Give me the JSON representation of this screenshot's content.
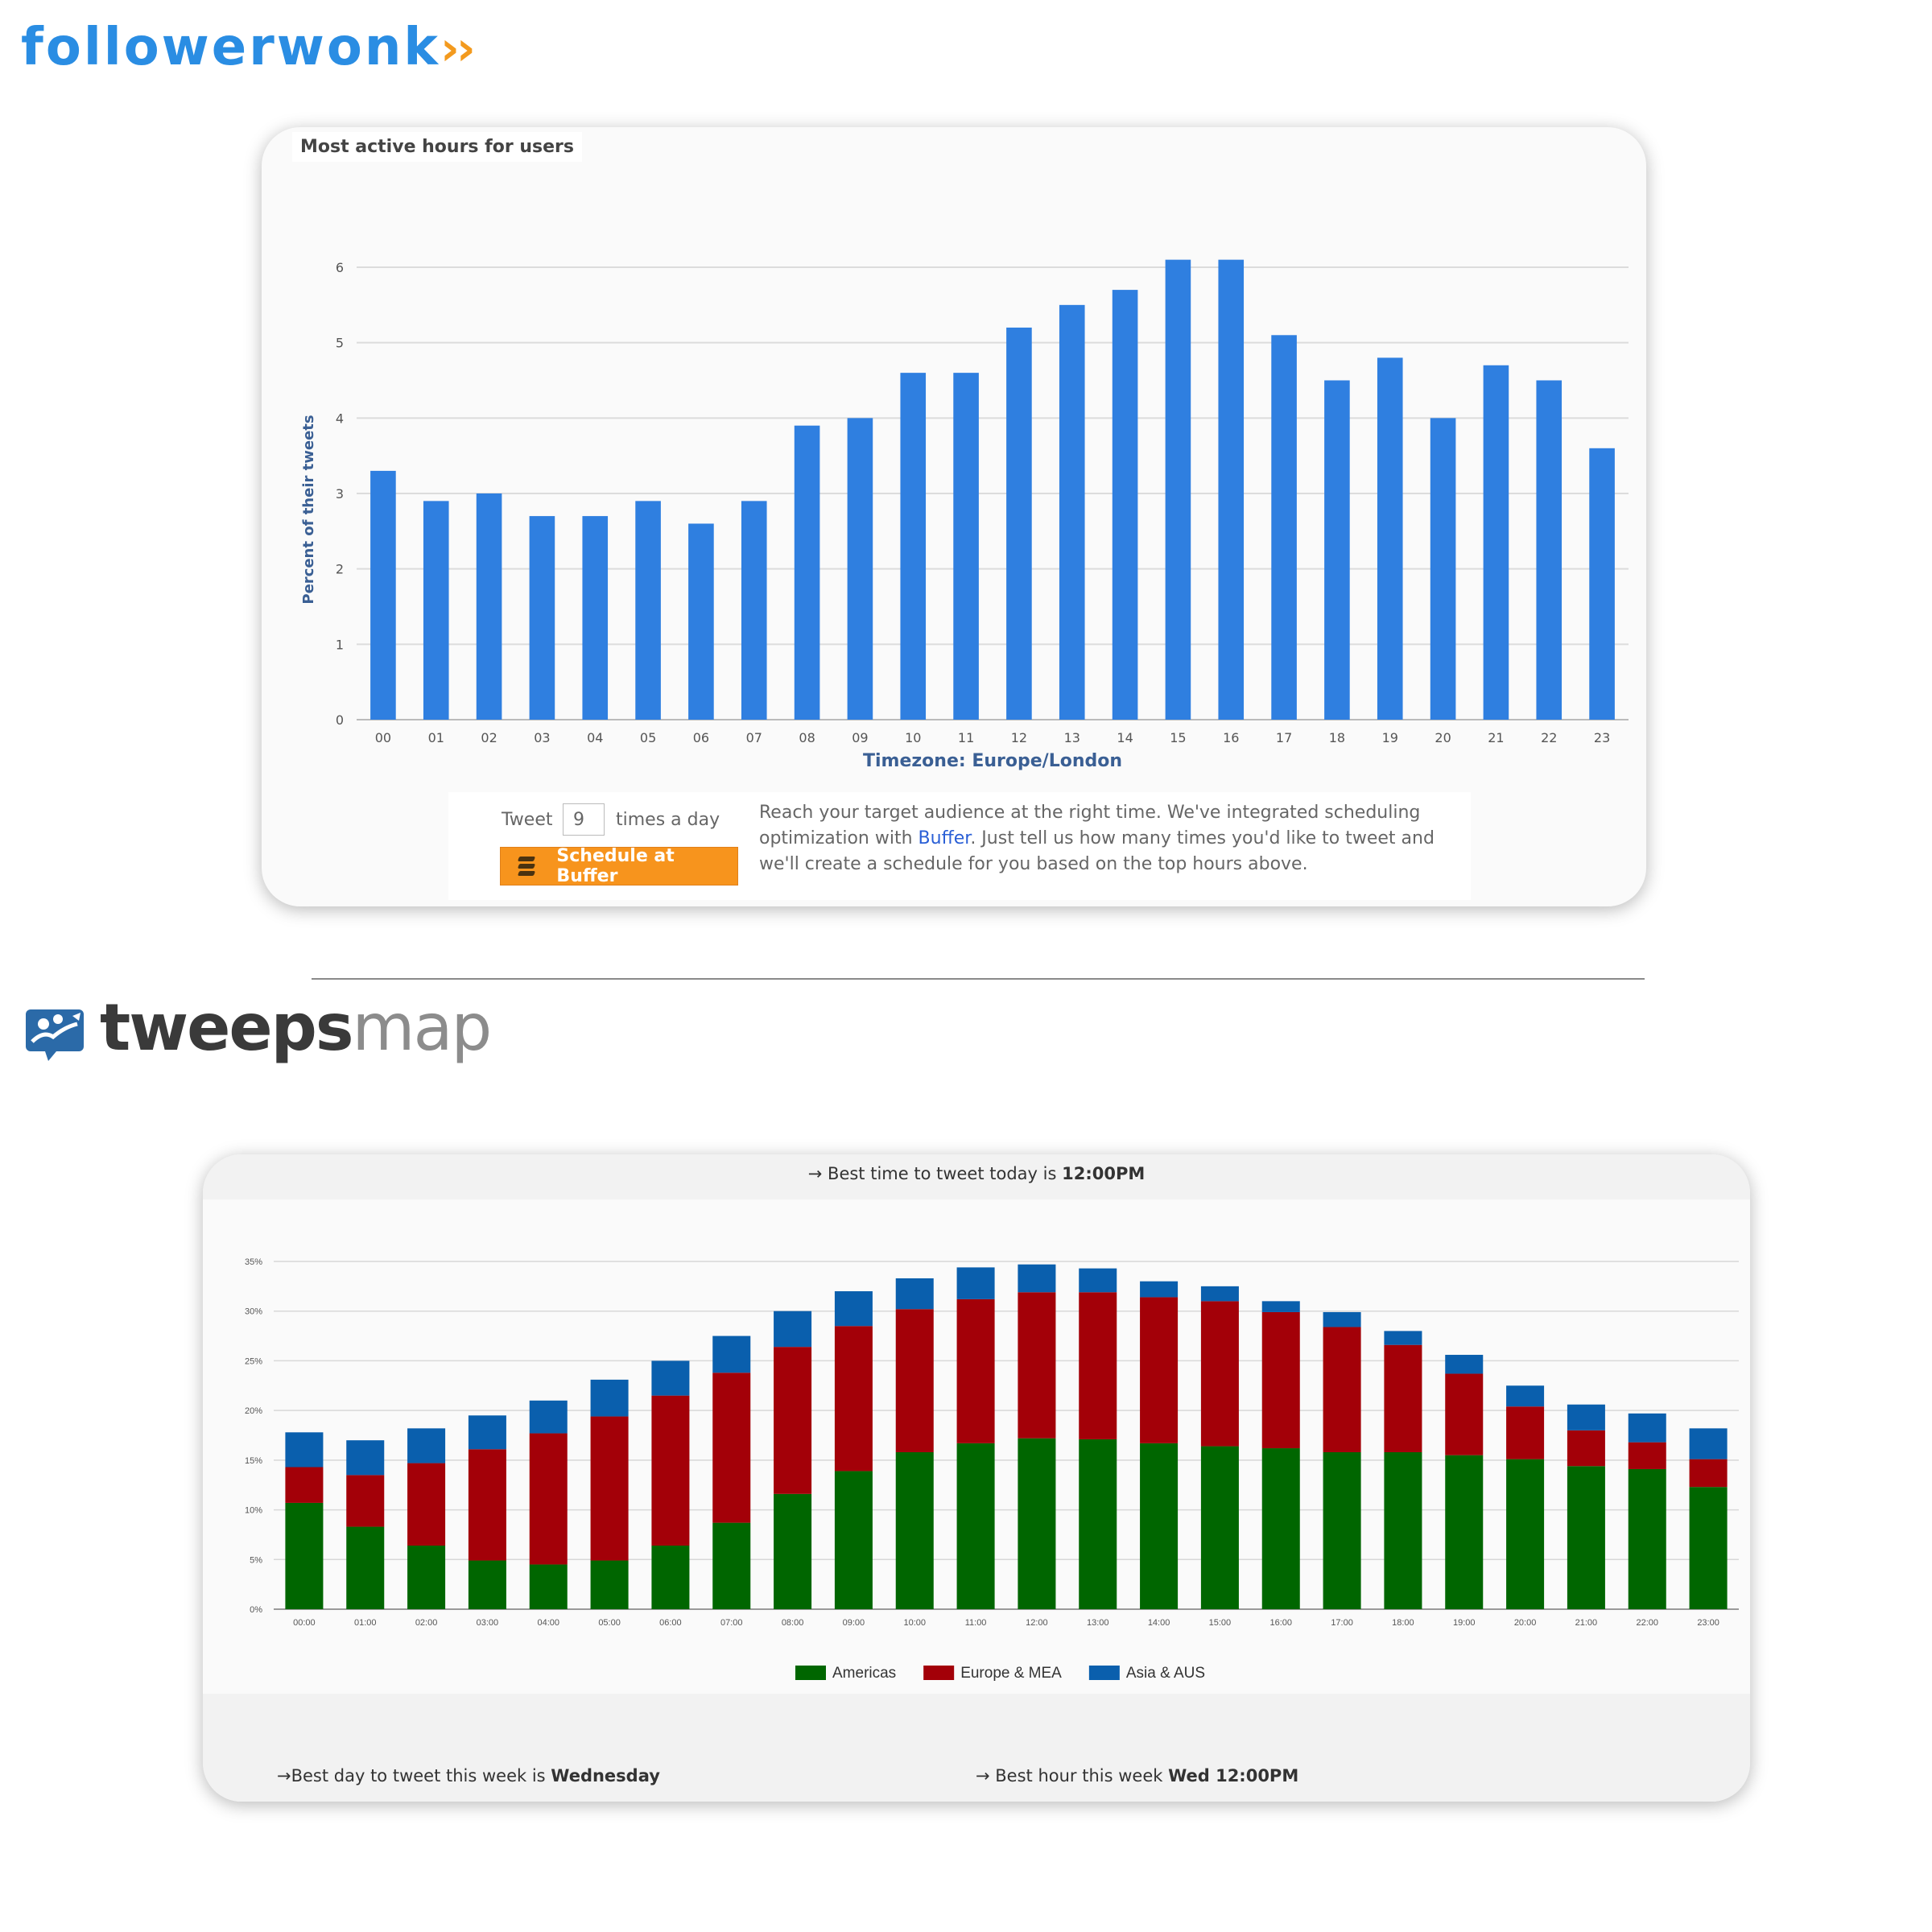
{
  "followerwonk": {
    "logo_text": "followerwonk",
    "logo_chevrons": "››",
    "card_title": "Most active hours for users",
    "buffer": {
      "tweet_label": "Tweet",
      "tweet_count_value": "9",
      "times_label": "times a day",
      "button_label": "Schedule at Buffer",
      "text_before": "Reach your target audience at the right time. We've integrated scheduling optimization with ",
      "link_text": "Buffer",
      "text_after": ". Just tell us how many times you'd like to tweet and we'll create a schedule for you based on the top hours above."
    }
  },
  "tweepsmap": {
    "logo_part1": "tweeps",
    "logo_part2": "map",
    "best_today_prefix": "→ Best time to tweet today is ",
    "best_today_value": "12:00PM",
    "best_day_prefix": "→Best day to tweet this week is ",
    "best_day_value": "Wednesday",
    "best_hour_prefix": "→ Best hour this week ",
    "best_hour_value": "Wed 12:00PM"
  },
  "colors": {
    "fw_blue": "#2a8de3",
    "fw_orange": "#f39a1e",
    "bar_blue": "#2f7fe0",
    "americas": "#006600",
    "europe": "#a30008",
    "asia": "#0a5fad"
  },
  "chart_data": [
    {
      "type": "bar",
      "title": "Most active hours for users",
      "xlabel": "Timezone: Europe/London",
      "ylabel": "Percent of their tweets",
      "ylim": [
        0,
        6
      ],
      "yticks": [
        0,
        1,
        2,
        3,
        4,
        5,
        6
      ],
      "grid": true,
      "categories": [
        "00",
        "01",
        "02",
        "03",
        "04",
        "05",
        "06",
        "07",
        "08",
        "09",
        "10",
        "11",
        "12",
        "13",
        "14",
        "15",
        "16",
        "17",
        "18",
        "19",
        "20",
        "21",
        "22",
        "23"
      ],
      "values": [
        3.3,
        2.9,
        3.0,
        2.7,
        2.7,
        2.9,
        2.6,
        2.9,
        3.9,
        4.0,
        4.6,
        4.6,
        5.2,
        5.5,
        5.7,
        6.1,
        6.1,
        5.1,
        4.5,
        4.8,
        4.0,
        4.7,
        4.5,
        3.6
      ]
    },
    {
      "type": "bar",
      "stacked": true,
      "ylim": [
        0,
        35
      ],
      "yticks": [
        "0%",
        "5%",
        "10%",
        "15%",
        "20%",
        "25%",
        "30%",
        "35%"
      ],
      "grid": true,
      "legend": "bottom-center",
      "categories": [
        "00:00",
        "01:00",
        "02:00",
        "03:00",
        "04:00",
        "05:00",
        "06:00",
        "07:00",
        "08:00",
        "09:00",
        "10:00",
        "11:00",
        "12:00",
        "13:00",
        "14:00",
        "15:00",
        "16:00",
        "17:00",
        "18:00",
        "19:00",
        "20:00",
        "21:00",
        "22:00",
        "23:00"
      ],
      "series": [
        {
          "name": "Americas",
          "values": [
            10.7,
            8.3,
            6.4,
            4.9,
            4.5,
            4.9,
            6.4,
            8.7,
            11.6,
            13.9,
            15.8,
            16.7,
            17.2,
            17.1,
            16.7,
            16.4,
            16.2,
            15.8,
            15.8,
            15.5,
            15.1,
            14.4,
            14.1,
            12.3
          ]
        },
        {
          "name": "Europe & MEA",
          "values": [
            3.6,
            5.2,
            8.3,
            11.2,
            13.2,
            14.5,
            15.1,
            15.1,
            14.8,
            14.6,
            14.4,
            14.5,
            14.7,
            14.8,
            14.7,
            14.6,
            13.7,
            12.6,
            10.8,
            8.2,
            5.3,
            3.6,
            2.7,
            2.8
          ]
        },
        {
          "name": "Asia & AUS",
          "values": [
            3.5,
            3.5,
            3.5,
            3.4,
            3.3,
            3.7,
            3.5,
            3.7,
            3.6,
            3.5,
            3.1,
            3.2,
            2.8,
            2.4,
            1.6,
            1.5,
            1.1,
            1.5,
            1.4,
            1.9,
            2.1,
            2.6,
            2.9,
            3.1
          ]
        }
      ]
    }
  ]
}
